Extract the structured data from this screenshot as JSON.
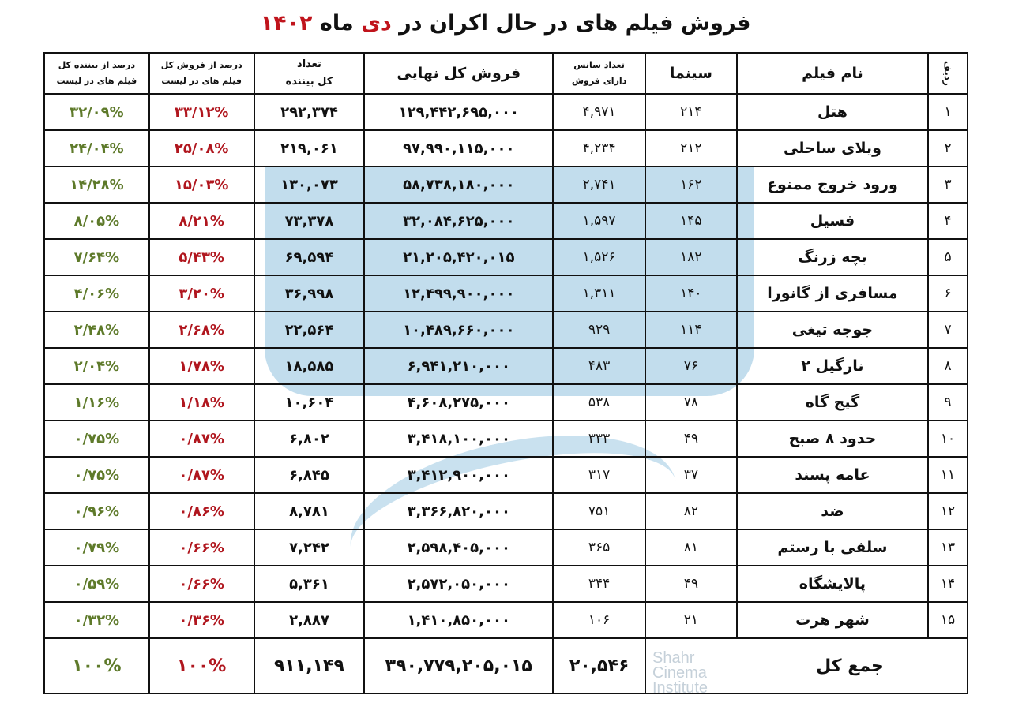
{
  "title": {
    "prefix": "فروش فیلم های در حال اکران در",
    "month": "دی",
    "middle": "ماه",
    "year": "۱۴۰۲"
  },
  "colors": {
    "title_accent": "#c0141c",
    "sales_percent": "#b0161e",
    "viewer_percent": "#5e7a2a"
  },
  "headers": {
    "row": "ردیف",
    "name": "نام فیلم",
    "cinemas": "سینما",
    "sessions_1": "تعداد سانس",
    "sessions_2": "دارای فروش",
    "sales": "فروش کل نهایی",
    "viewers_1": "تعداد",
    "viewers_2": "کل بیننده",
    "sales_pct_1": "درصد از فروش کل",
    "sales_pct_2": "فیلم های در لیست",
    "viewers_pct_1": "درصد از بیننده کل",
    "viewers_pct_2": "فیلم های در لیست"
  },
  "rows": [
    {
      "row": "۱",
      "name": "هتل",
      "cinemas": "۲۱۴",
      "sessions": "۴,۹۷۱",
      "sales": "۱۲۹,۴۴۲,۶۹۵,۰۰۰",
      "viewers": "۲۹۲,۳۷۴",
      "sales_pct": "۳۳/۱۲%",
      "viewers_pct": "۳۲/۰۹%"
    },
    {
      "row": "۲",
      "name": "ویلای ساحلی",
      "cinemas": "۲۱۲",
      "sessions": "۴,۲۳۴",
      "sales": "۹۷,۹۹۰,۱۱۵,۰۰۰",
      "viewers": "۲۱۹,۰۶۱",
      "sales_pct": "۲۵/۰۸%",
      "viewers_pct": "۲۴/۰۴%"
    },
    {
      "row": "۳",
      "name": "ورود خروج ممنوع",
      "cinemas": "۱۶۲",
      "sessions": "۲,۷۴۱",
      "sales": "۵۸,۷۳۸,۱۸۰,۰۰۰",
      "viewers": "۱۳۰,۰۷۳",
      "sales_pct": "۱۵/۰۳%",
      "viewers_pct": "۱۴/۲۸%"
    },
    {
      "row": "۴",
      "name": "فسیل",
      "cinemas": "۱۴۵",
      "sessions": "۱,۵۹۷",
      "sales": "۳۲,۰۸۴,۶۲۵,۰۰۰",
      "viewers": "۷۳,۳۷۸",
      "sales_pct": "۸/۲۱%",
      "viewers_pct": "۸/۰۵%"
    },
    {
      "row": "۵",
      "name": "بچه زرنگ",
      "cinemas": "۱۸۲",
      "sessions": "۱,۵۲۶",
      "sales": "۲۱,۲۰۵,۴۲۰,۰۱۵",
      "viewers": "۶۹,۵۹۴",
      "sales_pct": "۵/۴۳%",
      "viewers_pct": "۷/۶۴%"
    },
    {
      "row": "۶",
      "name": "مسافری از گانورا",
      "cinemas": "۱۴۰",
      "sessions": "۱,۳۱۱",
      "sales": "۱۲,۴۹۹,۹۰۰,۰۰۰",
      "viewers": "۳۶,۹۹۸",
      "sales_pct": "۳/۲۰%",
      "viewers_pct": "۴/۰۶%"
    },
    {
      "row": "۷",
      "name": "جوجه تیغی",
      "cinemas": "۱۱۴",
      "sessions": "۹۲۹",
      "sales": "۱۰,۴۸۹,۶۶۰,۰۰۰",
      "viewers": "۲۲,۵۶۴",
      "sales_pct": "۲/۶۸%",
      "viewers_pct": "۲/۴۸%"
    },
    {
      "row": "۸",
      "name": "نارگیل ۲",
      "cinemas": "۷۶",
      "sessions": "۴۸۳",
      "sales": "۶,۹۴۱,۲۱۰,۰۰۰",
      "viewers": "۱۸,۵۸۵",
      "sales_pct": "۱/۷۸%",
      "viewers_pct": "۲/۰۴%"
    },
    {
      "row": "۹",
      "name": "گیج گاه",
      "cinemas": "۷۸",
      "sessions": "۵۳۸",
      "sales": "۴,۶۰۸,۲۷۵,۰۰۰",
      "viewers": "۱۰,۶۰۴",
      "sales_pct": "۱/۱۸%",
      "viewers_pct": "۱/۱۶%"
    },
    {
      "row": "۱۰",
      "name": "حدود ۸ صبح",
      "cinemas": "۴۹",
      "sessions": "۳۳۳",
      "sales": "۳,۴۱۸,۱۰۰,۰۰۰",
      "viewers": "۶,۸۰۲",
      "sales_pct": "۰/۸۷%",
      "viewers_pct": "۰/۷۵%"
    },
    {
      "row": "۱۱",
      "name": "عامه پسند",
      "cinemas": "۳۷",
      "sessions": "۳۱۷",
      "sales": "۳,۴۱۲,۹۰۰,۰۰۰",
      "viewers": "۶,۸۴۵",
      "sales_pct": "۰/۸۷%",
      "viewers_pct": "۰/۷۵%"
    },
    {
      "row": "۱۲",
      "name": "ضد",
      "cinemas": "۸۲",
      "sessions": "۷۵۱",
      "sales": "۳,۳۶۶,۸۲۰,۰۰۰",
      "viewers": "۸,۷۸۱",
      "sales_pct": "۰/۸۶%",
      "viewers_pct": "۰/۹۶%"
    },
    {
      "row": "۱۳",
      "name": "سلفی با رستم",
      "cinemas": "۸۱",
      "sessions": "۳۶۵",
      "sales": "۲,۵۹۸,۴۰۵,۰۰۰",
      "viewers": "۷,۲۴۲",
      "sales_pct": "۰/۶۶%",
      "viewers_pct": "۰/۷۹%"
    },
    {
      "row": "۱۴",
      "name": "پالایشگاه",
      "cinemas": "۴۹",
      "sessions": "۳۴۴",
      "sales": "۲,۵۷۲,۰۵۰,۰۰۰",
      "viewers": "۵,۳۶۱",
      "sales_pct": "۰/۶۶%",
      "viewers_pct": "۰/۵۹%"
    },
    {
      "row": "۱۵",
      "name": "شهر هرت",
      "cinemas": "۲۱",
      "sessions": "۱۰۶",
      "sales": "۱,۴۱۰,۸۵۰,۰۰۰",
      "viewers": "۲,۸۸۷",
      "sales_pct": "۰/۳۶%",
      "viewers_pct": "۰/۳۲%"
    }
  ],
  "total": {
    "label": "جمع کل",
    "sessions": "۲۰,۵۴۶",
    "sales": "۳۹۰,۷۷۹,۲۰۵,۰۱۵",
    "viewers": "۹۱۱,۱۴۹",
    "sales_pct": "۱۰۰%",
    "viewers_pct": "۱۰۰%"
  },
  "watermark": {
    "text_1": "Shahr",
    "text_2": "Cinema",
    "text_3": "Institute"
  }
}
